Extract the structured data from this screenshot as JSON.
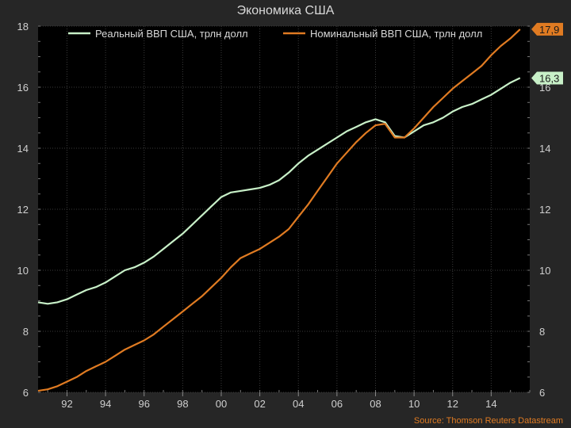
{
  "chart_data": {
    "type": "line",
    "title": "Экономика США",
    "source": "Source: Thomson Reuters Datastream",
    "xlabel": "",
    "ylabel": "",
    "xlim": [
      1990.5,
      2016.0
    ],
    "ylim": [
      6,
      18
    ],
    "x_ticks": [
      1992,
      1994,
      1996,
      1998,
      2000,
      2002,
      2004,
      2006,
      2008,
      2010,
      2012,
      2014
    ],
    "x_tick_labels": [
      "92",
      "94",
      "96",
      "98",
      "00",
      "02",
      "04",
      "06",
      "08",
      "10",
      "12",
      "14"
    ],
    "y_ticks": [
      6,
      8,
      10,
      12,
      14,
      16,
      18
    ],
    "y_tick_labels": [
      "6",
      "8",
      "10",
      "12",
      "14",
      "16",
      "18"
    ],
    "grid": true,
    "legend_position": "top",
    "series": [
      {
        "name": "Реальный ВВП США, трлн долл",
        "color": "#c8f0c8",
        "end_label": "16,3",
        "x": [
          1990.5,
          1991,
          1991.5,
          1992,
          1992.5,
          1993,
          1993.5,
          1994,
          1994.5,
          1995,
          1995.5,
          1996,
          1996.5,
          1997,
          1997.5,
          1998,
          1998.5,
          1999,
          1999.5,
          2000,
          2000.5,
          2001,
          2001.5,
          2002,
          2002.5,
          2003,
          2003.5,
          2004,
          2004.5,
          2005,
          2005.5,
          2006,
          2006.5,
          2007,
          2007.5,
          2008,
          2008.5,
          2009,
          2009.5,
          2010,
          2010.5,
          2011,
          2011.5,
          2012,
          2012.5,
          2013,
          2013.5,
          2014,
          2014.5,
          2015,
          2015.5
        ],
        "values": [
          8.95,
          8.9,
          8.95,
          9.05,
          9.2,
          9.35,
          9.45,
          9.6,
          9.8,
          10.0,
          10.1,
          10.25,
          10.45,
          10.7,
          10.95,
          11.2,
          11.5,
          11.8,
          12.1,
          12.4,
          12.55,
          12.6,
          12.65,
          12.7,
          12.8,
          12.95,
          13.2,
          13.5,
          13.75,
          13.95,
          14.15,
          14.35,
          14.55,
          14.7,
          14.85,
          14.95,
          14.85,
          14.4,
          14.35,
          14.55,
          14.75,
          14.85,
          15.0,
          15.2,
          15.35,
          15.45,
          15.6,
          15.75,
          15.95,
          16.15,
          16.3
        ]
      },
      {
        "name": "Номинальный ВВП США, трлн долл",
        "color": "#e07b22",
        "end_label": "17,9",
        "x": [
          1990.5,
          1991,
          1991.5,
          1992,
          1992.5,
          1993,
          1993.5,
          1994,
          1994.5,
          1995,
          1995.5,
          1996,
          1996.5,
          1997,
          1997.5,
          1998,
          1998.5,
          1999,
          1999.5,
          2000,
          2000.5,
          2001,
          2001.5,
          2002,
          2002.5,
          2003,
          2003.5,
          2004,
          2004.5,
          2005,
          2005.5,
          2006,
          2006.5,
          2007,
          2007.5,
          2008,
          2008.5,
          2009,
          2009.5,
          2010,
          2010.5,
          2011,
          2011.5,
          2012,
          2012.5,
          2013,
          2013.5,
          2014,
          2014.5,
          2015,
          2015.5
        ],
        "values": [
          6.05,
          6.1,
          6.2,
          6.35,
          6.5,
          6.7,
          6.85,
          7.0,
          7.2,
          7.4,
          7.55,
          7.7,
          7.9,
          8.15,
          8.4,
          8.65,
          8.9,
          9.15,
          9.45,
          9.75,
          10.1,
          10.4,
          10.55,
          10.7,
          10.9,
          11.1,
          11.35,
          11.75,
          12.15,
          12.6,
          13.05,
          13.5,
          13.85,
          14.2,
          14.5,
          14.75,
          14.8,
          14.35,
          14.35,
          14.65,
          15.0,
          15.35,
          15.65,
          15.95,
          16.2,
          16.45,
          16.7,
          17.05,
          17.35,
          17.6,
          17.9
        ]
      }
    ]
  }
}
